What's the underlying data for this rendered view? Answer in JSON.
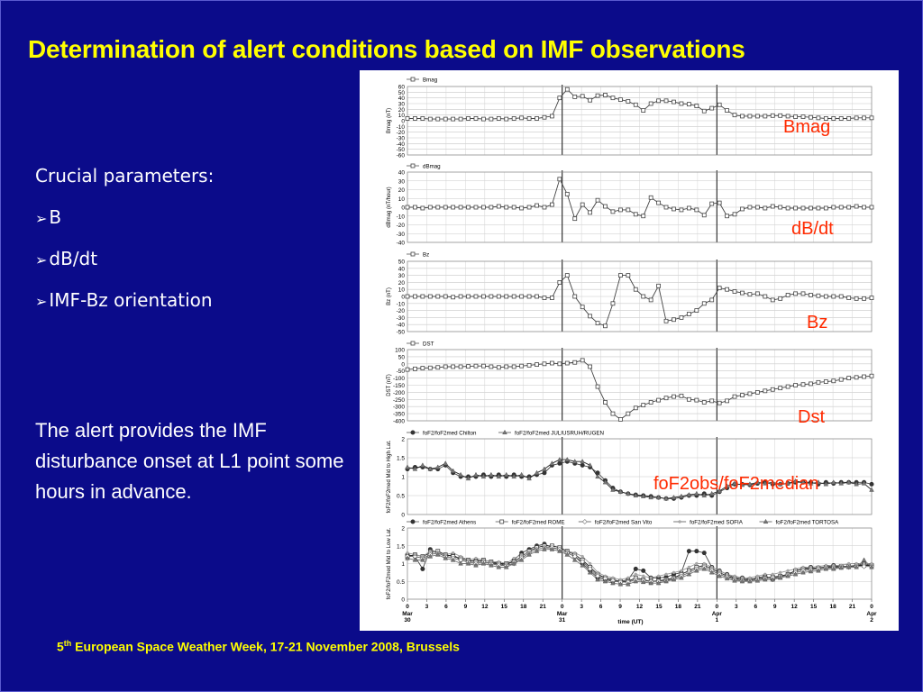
{
  "slide": {
    "title": "Determination of alert conditions based on IMF observations",
    "crucial_heading": "Crucial parameters:",
    "bullets": [
      "B",
      "dB/dt",
      "IMF-Bz orientation"
    ],
    "alert_text": "The alert provides the IMF disturbance onset at L1 point some hours in advance.",
    "footer_prefix": "5",
    "footer_sup": "th",
    "footer_text": " European Space Weather Week, 17-21 November 2008, Brussels",
    "colors": {
      "background": "#0b0b8a",
      "title": "#ffff00",
      "label": "#ff2a00"
    }
  },
  "chart_data": [
    {
      "type": "line",
      "id": "bmag",
      "legend": [
        "Bmag"
      ],
      "ylabel": "Bmag (nT)",
      "ylim": [
        -60,
        60
      ],
      "yticks": [
        60,
        50,
        40,
        30,
        20,
        10,
        0,
        -10,
        -20,
        -30,
        -40,
        -50,
        -60
      ],
      "side_label": "Bmag",
      "series": [
        {
          "name": "Bmag",
          "marker": "square",
          "values": [
            4,
            4,
            4,
            3,
            3,
            3,
            3,
            3,
            4,
            4,
            3,
            3,
            4,
            3,
            4,
            5,
            4,
            4,
            6,
            8,
            40,
            55,
            42,
            43,
            36,
            44,
            45,
            40,
            37,
            34,
            28,
            18,
            30,
            35,
            35,
            33,
            30,
            29,
            26,
            17,
            22,
            28,
            18,
            10,
            8,
            8,
            8,
            8,
            9,
            9,
            8,
            7,
            7,
            6,
            5,
            4,
            4,
            4,
            4,
            5,
            5,
            5
          ]
        }
      ]
    },
    {
      "type": "line",
      "id": "dbmag",
      "legend": [
        "dBmag"
      ],
      "ylabel": "dBmag (nT/hour)",
      "ylim": [
        -40,
        40
      ],
      "yticks": [
        40,
        30,
        20,
        10,
        0,
        -10,
        -20,
        -30,
        -40
      ],
      "side_label": "dB/dt",
      "series": [
        {
          "name": "dBmag",
          "marker": "square",
          "values": [
            0,
            0,
            -1,
            0,
            0,
            0,
            0,
            0,
            0,
            0,
            0,
            0,
            1,
            0,
            0,
            -1,
            0,
            2,
            0,
            3,
            32,
            15,
            -13,
            3,
            -6,
            8,
            1,
            -5,
            -3,
            -3,
            -8,
            -10,
            11,
            5,
            0,
            -2,
            -3,
            -1,
            -3,
            -9,
            4,
            5,
            -10,
            -8,
            -2,
            0,
            0,
            -1,
            1,
            0,
            -1,
            -1,
            -1,
            -1,
            -1,
            -1,
            0,
            0,
            0,
            1,
            0,
            0
          ]
        }
      ]
    },
    {
      "type": "line",
      "id": "bz",
      "legend": [
        "Bz"
      ],
      "ylabel": "Bz (nT)",
      "ylim": [
        -50,
        50
      ],
      "yticks": [
        50,
        40,
        30,
        20,
        10,
        0,
        -10,
        -20,
        -30,
        -40,
        -50
      ],
      "side_label": "Bz",
      "series": [
        {
          "name": "Bz",
          "marker": "square",
          "values": [
            0,
            0,
            0,
            0,
            0,
            0,
            -1,
            0,
            0,
            0,
            0,
            0,
            0,
            0,
            0,
            0,
            0,
            0,
            -2,
            -2,
            20,
            30,
            0,
            -15,
            -28,
            -38,
            -42,
            -10,
            30,
            30,
            10,
            0,
            -5,
            15,
            -35,
            -33,
            -30,
            -25,
            -20,
            -10,
            -5,
            12,
            10,
            7,
            5,
            3,
            4,
            0,
            -5,
            -3,
            2,
            4,
            4,
            2,
            1,
            0,
            0,
            0,
            -2,
            -3,
            -3,
            -2
          ]
        }
      ]
    },
    {
      "type": "line",
      "id": "dst",
      "legend": [
        "DST"
      ],
      "ylabel": "DST (nT)",
      "ylim": [
        -400,
        100
      ],
      "yticks": [
        100,
        50,
        0,
        -50,
        -100,
        -150,
        -200,
        -250,
        -300,
        -350,
        -400
      ],
      "side_label": "Dst",
      "series": [
        {
          "name": "DST",
          "marker": "square",
          "values": [
            -40,
            -35,
            -30,
            -28,
            -25,
            -20,
            -20,
            -20,
            -18,
            -15,
            -15,
            -20,
            -25,
            -20,
            -20,
            -15,
            -10,
            -5,
            0,
            5,
            0,
            5,
            10,
            25,
            -20,
            -160,
            -270,
            -350,
            -390,
            -350,
            -310,
            -290,
            -270,
            -255,
            -240,
            -230,
            -225,
            -250,
            -255,
            -270,
            -260,
            -275,
            -260,
            -230,
            -220,
            -210,
            -200,
            -190,
            -180,
            -170,
            -160,
            -150,
            -145,
            -140,
            -130,
            -125,
            -120,
            -110,
            -100,
            -95,
            -90,
            -85
          ]
        }
      ]
    },
    {
      "type": "line",
      "id": "fof2_high",
      "legend": [
        "foF2/foF2med Chilton",
        "foF2/foF2med JULIUSRUH/RUGEN"
      ],
      "ylabel": "foF2/foF2med Mid to High Lat.",
      "ylim": [
        0,
        2
      ],
      "yticks": [
        2,
        1.5,
        1,
        0.5,
        0
      ],
      "side_label": "foF2obs/foF2median",
      "series": [
        {
          "name": "foF2/foF2med Chilton",
          "marker": "circle",
          "values": [
            1.2,
            1.25,
            1.25,
            1.2,
            1.2,
            1.3,
            1.1,
            1.0,
            1.0,
            1.0,
            1.05,
            1.0,
            1.05,
            1.0,
            1.05,
            1.0,
            1.0,
            1.05,
            1.1,
            1.3,
            1.35,
            1.4,
            1.35,
            1.3,
            1.25,
            1.1,
            0.9,
            0.7,
            0.6,
            0.55,
            0.52,
            0.5,
            0.48,
            0.45,
            0.42,
            0.42,
            0.45,
            0.5,
            0.5,
            0.55,
            0.5,
            0.6,
            0.7,
            0.8,
            0.8,
            0.78,
            0.82,
            0.85,
            0.8,
            0.8,
            0.82,
            0.85,
            0.85,
            0.85,
            0.8,
            0.85,
            0.82,
            0.85,
            0.85,
            0.85,
            0.85,
            0.8
          ]
        },
        {
          "name": "foF2/foF2med JULIUSRUH/RUGEN",
          "marker": "triangle",
          "values": [
            1.25,
            1.2,
            1.3,
            1.2,
            1.25,
            1.35,
            1.15,
            1.05,
            0.95,
            1.05,
            1.0,
            1.05,
            1.0,
            1.05,
            1.0,
            1.05,
            0.95,
            1.1,
            1.2,
            1.35,
            1.45,
            1.45,
            1.4,
            1.4,
            1.3,
            1.0,
            0.85,
            0.65,
            0.6,
            0.55,
            0.5,
            0.48,
            0.45,
            0.45,
            0.42,
            0.45,
            0.48,
            0.52,
            0.55,
            0.5,
            0.55,
            0.62,
            0.75,
            0.82,
            0.78,
            0.8,
            0.85,
            0.82,
            0.85,
            0.8,
            0.82,
            0.88,
            0.85,
            0.82,
            0.85,
            0.8,
            0.85,
            0.82,
            0.85,
            0.8,
            0.82,
            0.65
          ]
        }
      ]
    },
    {
      "type": "line",
      "id": "fof2_low",
      "legend": [
        "foF2/foF2med Athens",
        "foF2/foF2med ROME",
        "foF2/foF2med San Vito",
        "foF2/foF2med SOFIA",
        "foF2/foF2med TORTOSA"
      ],
      "ylabel": "foF2/foF2med Mid to Low Lat.",
      "ylim": [
        0,
        2
      ],
      "yticks": [
        2,
        1.5,
        1,
        0.5,
        0
      ],
      "xlabel": "time (UT)",
      "xticks": [
        "0",
        "3",
        "6",
        "9",
        "12",
        "15",
        "18",
        "21",
        "0",
        "3",
        "6",
        "9",
        "12",
        "15",
        "18",
        "21",
        "0",
        "3",
        "6",
        "9",
        "12",
        "15",
        "18",
        "21",
        "0"
      ],
      "day_labels": [
        {
          "tick": 0,
          "month": "Mar",
          "day": "30"
        },
        {
          "tick": 8,
          "month": "Mar",
          "day": "31"
        },
        {
          "tick": 16,
          "month": "Apr",
          "day": "1"
        },
        {
          "tick": 24,
          "month": "Apr",
          "day": "2"
        }
      ],
      "series": [
        {
          "name": "foF2/foF2med Athens",
          "marker": "circle",
          "values": [
            1.25,
            1.2,
            0.85,
            1.4,
            1.3,
            1.2,
            1.25,
            1.1,
            1.05,
            1.1,
            1.05,
            1.0,
            1.0,
            0.95,
            1.1,
            1.3,
            1.4,
            1.5,
            1.55,
            1.45,
            1.4,
            1.3,
            1.2,
            1.0,
            0.8,
            0.6,
            0.55,
            0.5,
            0.5,
            0.55,
            0.85,
            0.8,
            0.6,
            0.6,
            0.62,
            0.7,
            0.75,
            1.35,
            1.35,
            1.3,
            0.9,
            0.8,
            0.7,
            0.6,
            0.6,
            0.55,
            0.6,
            0.65,
            0.55,
            0.62,
            0.7,
            0.8,
            0.85,
            0.9,
            0.85,
            0.9,
            0.95,
            0.9,
            0.92,
            0.95,
            1.0,
            0.95
          ]
        },
        {
          "name": "foF2/foF2med ROME",
          "marker": "square",
          "values": [
            1.2,
            1.25,
            1.2,
            1.3,
            1.35,
            1.25,
            1.2,
            1.15,
            1.1,
            1.05,
            1.1,
            1.05,
            1.0,
            1.0,
            1.05,
            1.2,
            1.35,
            1.45,
            1.5,
            1.5,
            1.45,
            1.35,
            1.25,
            1.1,
            0.9,
            0.7,
            0.6,
            0.55,
            0.5,
            0.5,
            0.6,
            0.55,
            0.5,
            0.52,
            0.55,
            0.6,
            0.7,
            0.8,
            0.9,
            0.95,
            0.85,
            0.75,
            0.65,
            0.58,
            0.55,
            0.55,
            0.58,
            0.6,
            0.62,
            0.65,
            0.7,
            0.8,
            0.85,
            0.85,
            0.88,
            0.9,
            0.9,
            0.92,
            0.92,
            0.95,
            0.95,
            0.95
          ]
        },
        {
          "name": "foF2/foF2med San Vito",
          "marker": "diamond",
          "values": [
            1.2,
            1.2,
            1.15,
            1.25,
            1.3,
            1.2,
            1.15,
            1.1,
            1.05,
            1.0,
            1.05,
            1.0,
            0.95,
            0.95,
            1.0,
            1.15,
            1.3,
            1.4,
            1.45,
            1.45,
            1.4,
            1.3,
            1.2,
            1.05,
            0.85,
            0.65,
            0.58,
            0.52,
            0.48,
            0.48,
            0.55,
            0.52,
            0.5,
            0.5,
            0.52,
            0.58,
            0.65,
            0.75,
            0.85,
            0.9,
            0.8,
            0.7,
            0.62,
            0.55,
            0.52,
            0.52,
            0.55,
            0.58,
            0.6,
            0.62,
            0.68,
            0.75,
            0.8,
            0.82,
            0.85,
            0.88,
            0.88,
            0.9,
            0.9,
            0.92,
            0.92,
            0.92
          ]
        },
        {
          "name": "foF2/foF2med SOFIA",
          "marker": "dot",
          "values": [
            1.3,
            1.25,
            1.2,
            1.35,
            1.3,
            1.25,
            1.3,
            1.2,
            1.1,
            1.15,
            1.1,
            1.05,
            1.05,
            1.0,
            1.15,
            1.25,
            1.3,
            1.4,
            1.45,
            1.4,
            1.35,
            1.35,
            1.3,
            1.2,
            1.0,
            0.75,
            0.65,
            0.6,
            0.55,
            0.6,
            0.7,
            0.65,
            0.6,
            0.65,
            0.7,
            0.75,
            0.8,
            0.9,
            1.0,
            1.0,
            0.9,
            0.8,
            0.7,
            0.65,
            0.6,
            0.6,
            0.65,
            0.7,
            0.7,
            0.75,
            0.8,
            0.85,
            0.9,
            0.9,
            0.92,
            0.95,
            0.95,
            0.95,
            1.0,
            1.0,
            1.0,
            1.0
          ]
        },
        {
          "name": "foF2/foF2med TORTOSA",
          "marker": "triangle",
          "values": [
            1.15,
            1.1,
            1.1,
            1.2,
            1.25,
            1.15,
            1.1,
            1.0,
            1.0,
            0.95,
            1.0,
            0.95,
            0.9,
            0.9,
            1.0,
            1.1,
            1.25,
            1.35,
            1.4,
            1.4,
            1.35,
            1.25,
            1.1,
            0.95,
            0.75,
            0.55,
            0.5,
            0.45,
            0.42,
            0.42,
            0.5,
            0.48,
            0.45,
            0.45,
            0.5,
            0.55,
            0.6,
            0.7,
            0.8,
            0.85,
            0.75,
            0.65,
            0.58,
            0.52,
            0.5,
            0.5,
            0.52,
            0.55,
            0.55,
            0.6,
            0.65,
            0.7,
            0.75,
            0.78,
            0.8,
            0.85,
            0.85,
            0.88,
            0.9,
            0.9,
            1.1,
            0.9
          ]
        }
      ]
    }
  ]
}
